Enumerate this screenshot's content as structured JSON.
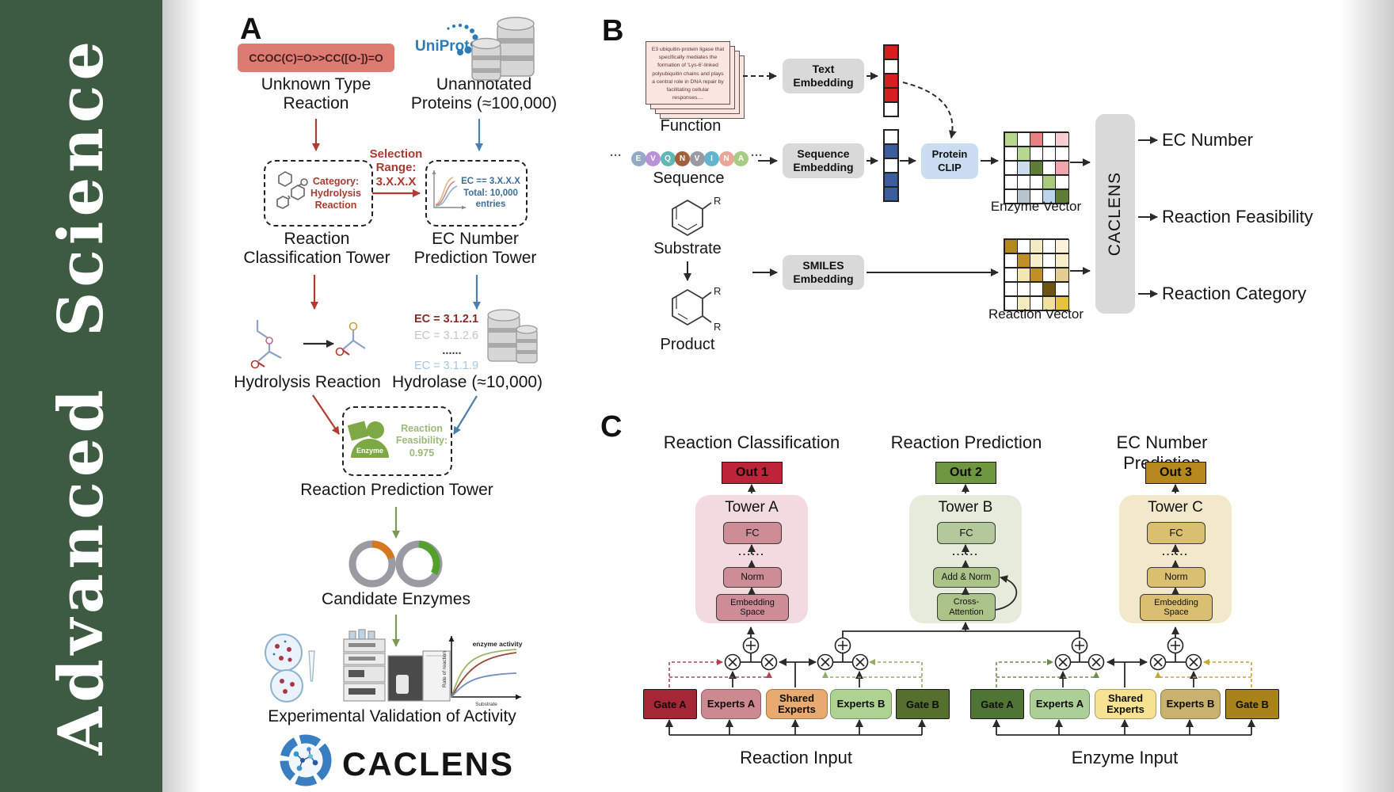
{
  "sidebar": {
    "journal": "Advanced  Science"
  },
  "panelA": {
    "label": "A",
    "smiles": "CCOC(C)=O>>CC([O-])=O",
    "unknown": "Unknown Type\nReaction",
    "uniprot": "UniProt",
    "unannotated": "Unannotated\nProteins (≈100,000)",
    "selection": "Selection\nRange:\n3.X.X.X",
    "category": "Category:\nHydrolysis\nReaction",
    "ec_range": "EC == 3.X.X.X\nTotal: 10,000\nentries",
    "rct": "Reaction\nClassification Tower",
    "ecpt": "EC Number\nPrediction Tower",
    "ec1": "EC = 3.1.2.1",
    "ec2": "EC = 3.1.2.6",
    "ec_dots": "......",
    "ec3": "EC = 3.1.1.9",
    "hydrolysis": "Hydrolysis Reaction",
    "hydrolase": "Hydrolase (≈10,000)",
    "enzyme": "Enzyme",
    "feasibility": "Reaction\nFeasibility:\n0.975",
    "rpt": "Reaction Prediction Tower",
    "candidates": "Candidate Enzymes",
    "plot": {
      "title": "enzyme activity",
      "ylabel": "Rate of reaction",
      "xlabel": "Substrate"
    },
    "validation": "Experimental Validation of Activity",
    "logo": "CACLENS"
  },
  "panelB": {
    "label": "B",
    "function_text": "E3 ubiquitin-protein ligase that specifically mediates the formation of 'Lys-6'-linked polyubiquitin chains and plays a central role in DNA repair by facilitating cellular responses....",
    "function": "Function",
    "ellipsis": "···",
    "residues": [
      "E",
      "V",
      "Q",
      "N",
      "V",
      "I",
      "N",
      "A"
    ],
    "residue_colors": [
      "#93a9c4",
      "#b892d6",
      "#5fb8b4",
      "#a2603a",
      "#9a9aa2",
      "#63b4cf",
      "#e8a698",
      "#a9cc85"
    ],
    "sequence": "Sequence",
    "substrate": "Substrate",
    "product": "Product",
    "r_label": "R",
    "text_embedding": "Text\nEmbedding",
    "sequence_embedding": "Sequence\nEmbedding",
    "smiles_embedding": "SMILES\nEmbedding",
    "protein_clip": "Protein\nCLIP",
    "text_vector": [
      "#d81f1f",
      "#ffffff",
      "#d81f1f",
      "#d81f1f",
      "#ffffff"
    ],
    "seq_vector": [
      "#ffffff",
      "#3d5e9e",
      "#ffffff",
      "#3d5e9e",
      "#3d5e9e"
    ],
    "enzyme_grid": [
      [
        "#b7d690",
        "#ffffff",
        "#e88282",
        "#ffffff",
        "#f6cdd0"
      ],
      [
        "#ffffff",
        "#b7d690",
        "#ffffff",
        "#ffffff",
        "#ffffff"
      ],
      [
        "#ffffff",
        "#ccdcee",
        "#5f7d36",
        "#ffffff",
        "#f0a6ac"
      ],
      [
        "#ffffff",
        "#ffffff",
        "#ffffff",
        "#a9cb7c",
        "#ffffff"
      ],
      [
        "#ffffff",
        "#b7c3cd",
        "#ffffff",
        "#bcd4ec",
        "#5f7d36"
      ]
    ],
    "reaction_grid": [
      [
        "#b5881c",
        "#ffffff",
        "#f4ecc0",
        "#ffffff",
        "#faf3da"
      ],
      [
        "#ffffff",
        "#c09027",
        "#f7efc9",
        "#ffffff",
        "#f7efc9"
      ],
      [
        "#ffffff",
        "#f2e7ae",
        "#c09027",
        "#ffffff",
        "#e3cd90"
      ],
      [
        "#ffffff",
        "#ffffff",
        "#ffffff",
        "#6e5410",
        "#ffffff"
      ],
      [
        "#ffffff",
        "#f4ecc0",
        "#ffffff",
        "#f0e29e",
        "#e4c33e"
      ]
    ],
    "enzyme_vector": "Enzyme Vector",
    "reaction_vector": "Reaction Vector",
    "caclens": "CACLENS",
    "outputs": [
      "EC Number",
      "Reaction Feasibility",
      "Reaction Category"
    ]
  },
  "panelC": {
    "label": "C",
    "headers": [
      "Reaction Classification",
      "Reaction Prediction",
      "EC Number Prediction"
    ],
    "outs": [
      "Out 1",
      "Out 2",
      "Out 3"
    ],
    "towers": [
      {
        "name": "Tower A",
        "fc": "FC",
        "dots": "......",
        "mid": "Norm",
        "bottom": "Embedding\nSpace"
      },
      {
        "name": "Tower B",
        "fc": "FC",
        "dots": "......",
        "mid": "Add & Norm",
        "bottom": "Cross-\nAttention"
      },
      {
        "name": "Tower C",
        "fc": "FC",
        "dots": "......",
        "mid": "Norm",
        "bottom": "Embedding\nSpace"
      }
    ],
    "groups": [
      {
        "gate_a": "Gate A",
        "experts_a": "Experts A",
        "shared": "Shared\nExperts",
        "experts_b": "Experts B",
        "gate_b": "Gate B",
        "input": "Reaction Input"
      },
      {
        "gate_a": "Gate A",
        "experts_a": "Experts A",
        "shared": "Shared\nExperts",
        "experts_b": "Experts B",
        "gate_b": "Gate B",
        "input": "Enzyme Input"
      }
    ]
  }
}
